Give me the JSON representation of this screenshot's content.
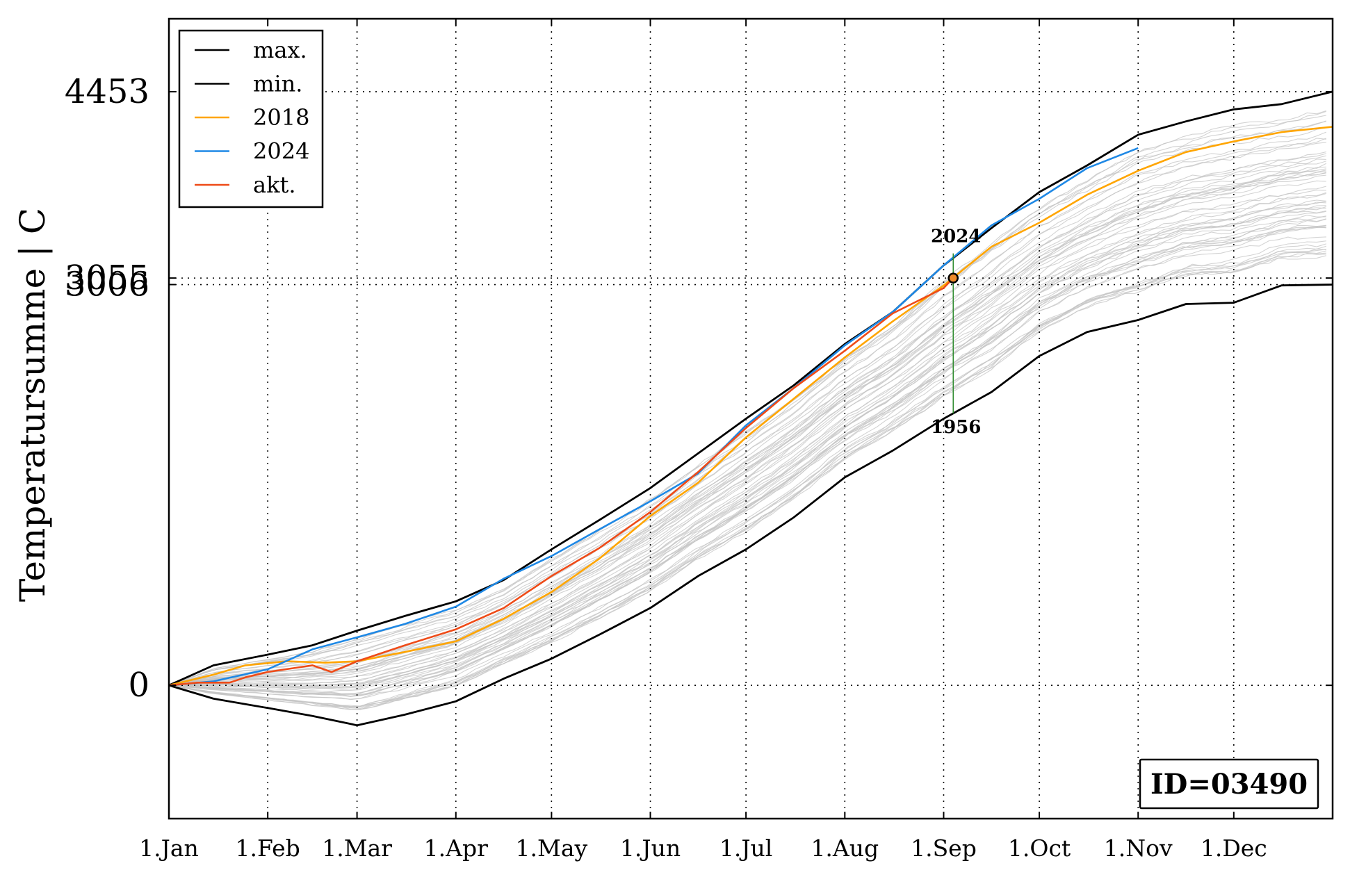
{
  "chart_data": {
    "type": "line",
    "title": "",
    "xlabel": "",
    "ylabel": "Temperatursumme | C",
    "x_ticks": [
      "1.Jan",
      "1.Feb",
      "1.Mar",
      "1.Apr",
      "1.May",
      "1.Jun",
      "1.Jul",
      "1.Aug",
      "1.Sep",
      "1.Oct",
      "1.Nov",
      "1.Dec"
    ],
    "x_tick_days": [
      1,
      32,
      60,
      91,
      121,
      152,
      182,
      213,
      244,
      274,
      305,
      335
    ],
    "xlim": [
      1,
      366
    ],
    "ylim": [
      -1000,
      5000
    ],
    "y_ticks": [
      {
        "value": 0,
        "label": "0"
      },
      {
        "value": 3006,
        "label": "3006"
      },
      {
        "value": 3055,
        "label": "3055"
      },
      {
        "value": 4453,
        "label": "4453"
      }
    ],
    "grid": "dotted",
    "legend_position": "top-left",
    "id_label": "ID=03490",
    "series": [
      {
        "name": "max.",
        "color": "#000000",
        "x": [
          1,
          15,
          32,
          46,
          60,
          75,
          91,
          106,
          121,
          136,
          152,
          167,
          182,
          197,
          213,
          228,
          244,
          259,
          274,
          289,
          305,
          320,
          335,
          350,
          366
        ],
        "y": [
          0,
          150,
          230,
          300,
          410,
          520,
          630,
          790,
          1020,
          1240,
          1480,
          1740,
          2000,
          2250,
          2560,
          2800,
          3150,
          3430,
          3700,
          3900,
          4130,
          4230,
          4320,
          4360,
          4453
        ]
      },
      {
        "name": "min.",
        "color": "#000000",
        "x": [
          1,
          15,
          32,
          46,
          60,
          75,
          91,
          106,
          121,
          136,
          152,
          167,
          182,
          197,
          213,
          228,
          244,
          259,
          274,
          289,
          305,
          320,
          335,
          350,
          366
        ],
        "y": [
          0,
          -100,
          -170,
          -230,
          -300,
          -220,
          -120,
          50,
          200,
          380,
          580,
          820,
          1020,
          1260,
          1560,
          1760,
          2000,
          2200,
          2470,
          2650,
          2740,
          2860,
          2870,
          3000,
          3006
        ]
      },
      {
        "name": "2018",
        "color": "#ffa500",
        "x": [
          1,
          15,
          25,
          38,
          50,
          60,
          75,
          91,
          106,
          121,
          136,
          152,
          167,
          182,
          197,
          213,
          228,
          244,
          259,
          274,
          289,
          305,
          320,
          335,
          350,
          366
        ],
        "y": [
          0,
          80,
          150,
          180,
          170,
          180,
          250,
          330,
          500,
          700,
          950,
          1270,
          1520,
          1860,
          2150,
          2460,
          2730,
          3000,
          3290,
          3470,
          3680,
          3860,
          4000,
          4080,
          4150,
          4190
        ]
      },
      {
        "name": "2024",
        "color": "#1e88e5",
        "x": [
          1,
          15,
          32,
          46,
          60,
          75,
          91,
          106,
          121,
          136,
          152,
          167,
          182,
          197,
          213,
          228,
          244,
          259,
          274,
          289,
          305
        ],
        "y": [
          0,
          30,
          120,
          270,
          360,
          460,
          590,
          800,
          970,
          1170,
          1380,
          1590,
          1950,
          2230,
          2550,
          2800,
          3150,
          3450,
          3650,
          3880,
          4030
        ]
      },
      {
        "name": "akt.",
        "color": "#ee4b18",
        "x": [
          1,
          10,
          20,
          25,
          32,
          46,
          52,
          60,
          75,
          91,
          106,
          121,
          136,
          152,
          167,
          182,
          197,
          213,
          228,
          244,
          247
        ],
        "y": [
          0,
          20,
          20,
          60,
          100,
          150,
          100,
          180,
          300,
          420,
          580,
          820,
          1030,
          1300,
          1600,
          1930,
          2230,
          2510,
          2790,
          2980,
          3055
        ]
      }
    ],
    "background_years_color": "#c4c4c4",
    "marker": {
      "x": 247,
      "y": 3055,
      "label_top": "2024",
      "label_bottom": "1956",
      "top_y": 3240,
      "bottom_y": 2040,
      "line_color": "#2e8b2e"
    }
  }
}
